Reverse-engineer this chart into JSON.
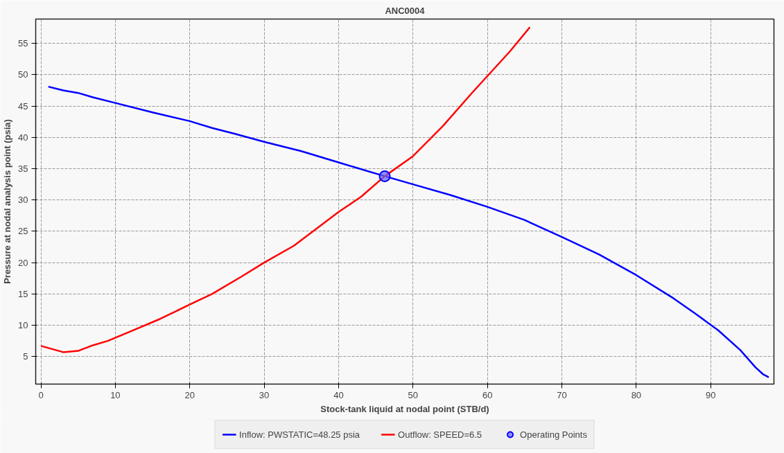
{
  "chart_data": {
    "type": "line",
    "title": "ANC0004",
    "xlabel": "Stock-tank liquid at nodal point (STB/d)",
    "ylabel": "Pressure at nodal analysis point (psia)",
    "xlim": [
      -0.7,
      98.5
    ],
    "ylim": [
      0.6,
      58.9
    ],
    "xticks": [
      0,
      10,
      20,
      30,
      40,
      50,
      60,
      70,
      80,
      90
    ],
    "yticks": [
      5,
      10,
      15,
      20,
      25,
      30,
      35,
      40,
      45,
      50,
      55
    ],
    "grid": true,
    "legend": "bottom",
    "marker": "none",
    "line_style": "solid",
    "series": [
      {
        "name": "Inflow: PWSTATIC=48.25 psia",
        "color": "#0000ff",
        "x": [
          1,
          3,
          5,
          7,
          10,
          15,
          20,
          23,
          26,
          30,
          35,
          40,
          46.2,
          50,
          55,
          60,
          65,
          70,
          75,
          80,
          85,
          88,
          91,
          94,
          96,
          97,
          97.8
        ],
        "values": [
          48.1,
          47.5,
          47.1,
          46.4,
          45.5,
          44.0,
          42.6,
          41.5,
          40.6,
          39.3,
          37.8,
          36.0,
          33.8,
          32.5,
          30.8,
          28.9,
          26.8,
          24.1,
          21.3,
          18.0,
          14.3,
          11.8,
          9.2,
          6.0,
          3.3,
          2.2,
          1.7
        ]
      },
      {
        "name": "Outflow: SPEED=6.5",
        "color": "#ff0000",
        "x": [
          0,
          3,
          5,
          7,
          9,
          12,
          16,
          20,
          23,
          27,
          30,
          34,
          38,
          40,
          43,
          46.2,
          50,
          54,
          58,
          60,
          63,
          65.7
        ],
        "values": [
          6.7,
          5.7,
          5.9,
          6.8,
          7.5,
          9.0,
          11.0,
          13.3,
          15.0,
          17.8,
          20.0,
          22.7,
          26.3,
          28.1,
          30.5,
          33.8,
          37.0,
          41.8,
          47.2,
          49.8,
          53.7,
          57.6
        ]
      },
      {
        "name": "Operating Points",
        "type": "scatter",
        "marker": "circle",
        "color": "#6666ff",
        "x": [
          46.2
        ],
        "values": [
          33.8
        ]
      }
    ]
  }
}
